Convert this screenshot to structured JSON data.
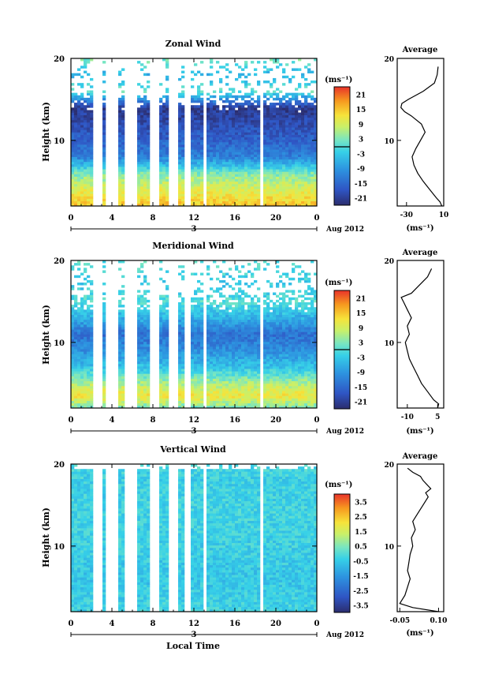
{
  "chart_data": [
    {
      "type": "heatmap",
      "key": "zonal",
      "title": "Zonal Wind",
      "ylabel": "Height (km)",
      "xlabel": "",
      "unit_label": "(ms⁻¹)",
      "date_label": "Aug 2012",
      "day_label": "3",
      "x_ticks": [
        "0",
        "4",
        "8",
        "12",
        "16",
        "20",
        "0"
      ],
      "y_ticks": [
        "20",
        "10"
      ],
      "colorbar_ticks": [
        "21",
        "15",
        "9",
        "3",
        "-3",
        "-9",
        "-15",
        "-21"
      ],
      "xlim": [
        0,
        24
      ],
      "ylim": [
        2,
        20
      ],
      "clim": [
        -24,
        24
      ],
      "profile": [
        {
          "h": 2,
          "v": 15
        },
        {
          "h": 4,
          "v": 10
        },
        {
          "h": 6,
          "v": 3
        },
        {
          "h": 8,
          "v": -12
        },
        {
          "h": 10,
          "v": -16
        },
        {
          "h": 12,
          "v": -19
        },
        {
          "h": 14,
          "v": -22
        },
        {
          "h": 16,
          "v": 1
        },
        {
          "h": 18,
          "v": -6
        },
        {
          "h": 20,
          "v": 3
        }
      ]
    },
    {
      "type": "line",
      "key": "zonal_avg",
      "title": "Average",
      "xlabel": "(ms⁻¹)",
      "x_ticks": [
        "-30",
        "10"
      ],
      "y_ticks": [
        "20",
        "10"
      ],
      "xlim": [
        -40,
        10
      ],
      "ylim": [
        2,
        20
      ],
      "x": [
        8,
        6,
        2,
        -5,
        -12,
        -18,
        -22,
        -24,
        -20,
        -15,
        -10,
        -14,
        -25,
        -32,
        -36,
        -35,
        -28,
        -12,
        0,
        3,
        4
      ],
      "y": [
        2,
        2.5,
        3,
        4,
        5,
        6,
        7,
        8,
        9,
        10,
        11,
        12,
        13,
        13.5,
        14,
        14.5,
        15,
        16,
        17,
        18,
        19
      ]
    },
    {
      "type": "heatmap",
      "key": "meridional",
      "title": "Meridional Wind",
      "ylabel": "Height (km)",
      "xlabel": "",
      "unit_label": "(ms⁻¹)",
      "date_label": "Aug 2012",
      "day_label": "3",
      "x_ticks": [
        "0",
        "4",
        "8",
        "12",
        "16",
        "20",
        "0"
      ],
      "y_ticks": [
        "20",
        "10"
      ],
      "colorbar_ticks": [
        "21",
        "15",
        "9",
        "3",
        "-3",
        "-9",
        "-15",
        "-21"
      ],
      "xlim": [
        0,
        24
      ],
      "ylim": [
        2,
        20
      ],
      "clim": [
        -24,
        24
      ],
      "profile": [
        {
          "h": 2,
          "v": 2
        },
        {
          "h": 3.5,
          "v": 12
        },
        {
          "h": 5,
          "v": 6
        },
        {
          "h": 7,
          "v": -4
        },
        {
          "h": 9,
          "v": -10
        },
        {
          "h": 11,
          "v": -14
        },
        {
          "h": 13,
          "v": -6
        },
        {
          "h": 15,
          "v": 0
        },
        {
          "h": 17,
          "v": -3
        },
        {
          "h": 20,
          "v": 0
        }
      ]
    },
    {
      "type": "line",
      "key": "meridional_avg",
      "title": "Average",
      "xlabel": "(ms⁻¹)",
      "x_ticks": [
        "-10",
        "5"
      ],
      "y_ticks": [
        "20",
        "10"
      ],
      "xlim": [
        -15,
        8
      ],
      "ylim": [
        2,
        20
      ],
      "x": [
        5,
        5.5,
        3,
        0,
        -3,
        -5,
        -7,
        -9,
        -10,
        -11,
        -9,
        -10,
        -8,
        -9,
        -10,
        -12,
        -13,
        -8,
        -4,
        0,
        2
      ],
      "y": [
        2,
        2.5,
        3,
        4,
        5,
        6,
        7,
        8,
        9,
        10,
        11,
        12,
        13,
        13.5,
        14,
        15,
        15.5,
        16,
        17,
        18,
        19
      ]
    },
    {
      "type": "heatmap",
      "key": "vertical",
      "title": "Vertical Wind",
      "ylabel": "Height (km)",
      "xlabel": "Local Time",
      "unit_label": "(ms⁻¹)",
      "date_label": "Aug 2012",
      "day_label": "3",
      "x_ticks": [
        "0",
        "4",
        "8",
        "12",
        "16",
        "20",
        "0"
      ],
      "y_ticks": [
        "20",
        "10"
      ],
      "colorbar_ticks": [
        "3.5",
        "2.5",
        "1.5",
        "0.5",
        "-0.5",
        "-1.5",
        "-2.5",
        "-3.5"
      ],
      "xlim": [
        0,
        24
      ],
      "ylim": [
        2,
        20
      ],
      "clim": [
        -4,
        4
      ],
      "profile": [
        {
          "h": 2,
          "v": -0.3
        },
        {
          "h": 6,
          "v": -0.6
        },
        {
          "h": 10,
          "v": -0.4
        },
        {
          "h": 14,
          "v": -0.3
        },
        {
          "h": 18,
          "v": -0.4
        },
        {
          "h": 20,
          "v": -0.2
        }
      ]
    },
    {
      "type": "line",
      "key": "vertical_avg",
      "title": "Average",
      "xlabel": "(ms⁻¹)",
      "x_ticks": [
        "-0.05",
        "0.10"
      ],
      "y_ticks": [
        "20",
        "10"
      ],
      "xlim": [
        -0.06,
        0.12
      ],
      "ylim": [
        2,
        20
      ],
      "x": [
        0.1,
        0.0,
        -0.05,
        -0.03,
        -0.02,
        -0.01,
        -0.02,
        -0.015,
        -0.01,
        0.0,
        -0.005,
        0.01,
        0.005,
        0.0,
        0.02,
        0.04,
        0.06,
        0.05,
        0.07,
        0.04,
        0.03,
        0.0,
        -0.02
      ],
      "y": [
        2,
        2.5,
        3,
        4,
        5,
        6,
        7,
        8,
        9,
        10,
        11,
        12,
        12.5,
        13,
        14,
        15,
        16,
        16.5,
        17,
        18,
        18.5,
        19,
        19.5
      ]
    }
  ]
}
